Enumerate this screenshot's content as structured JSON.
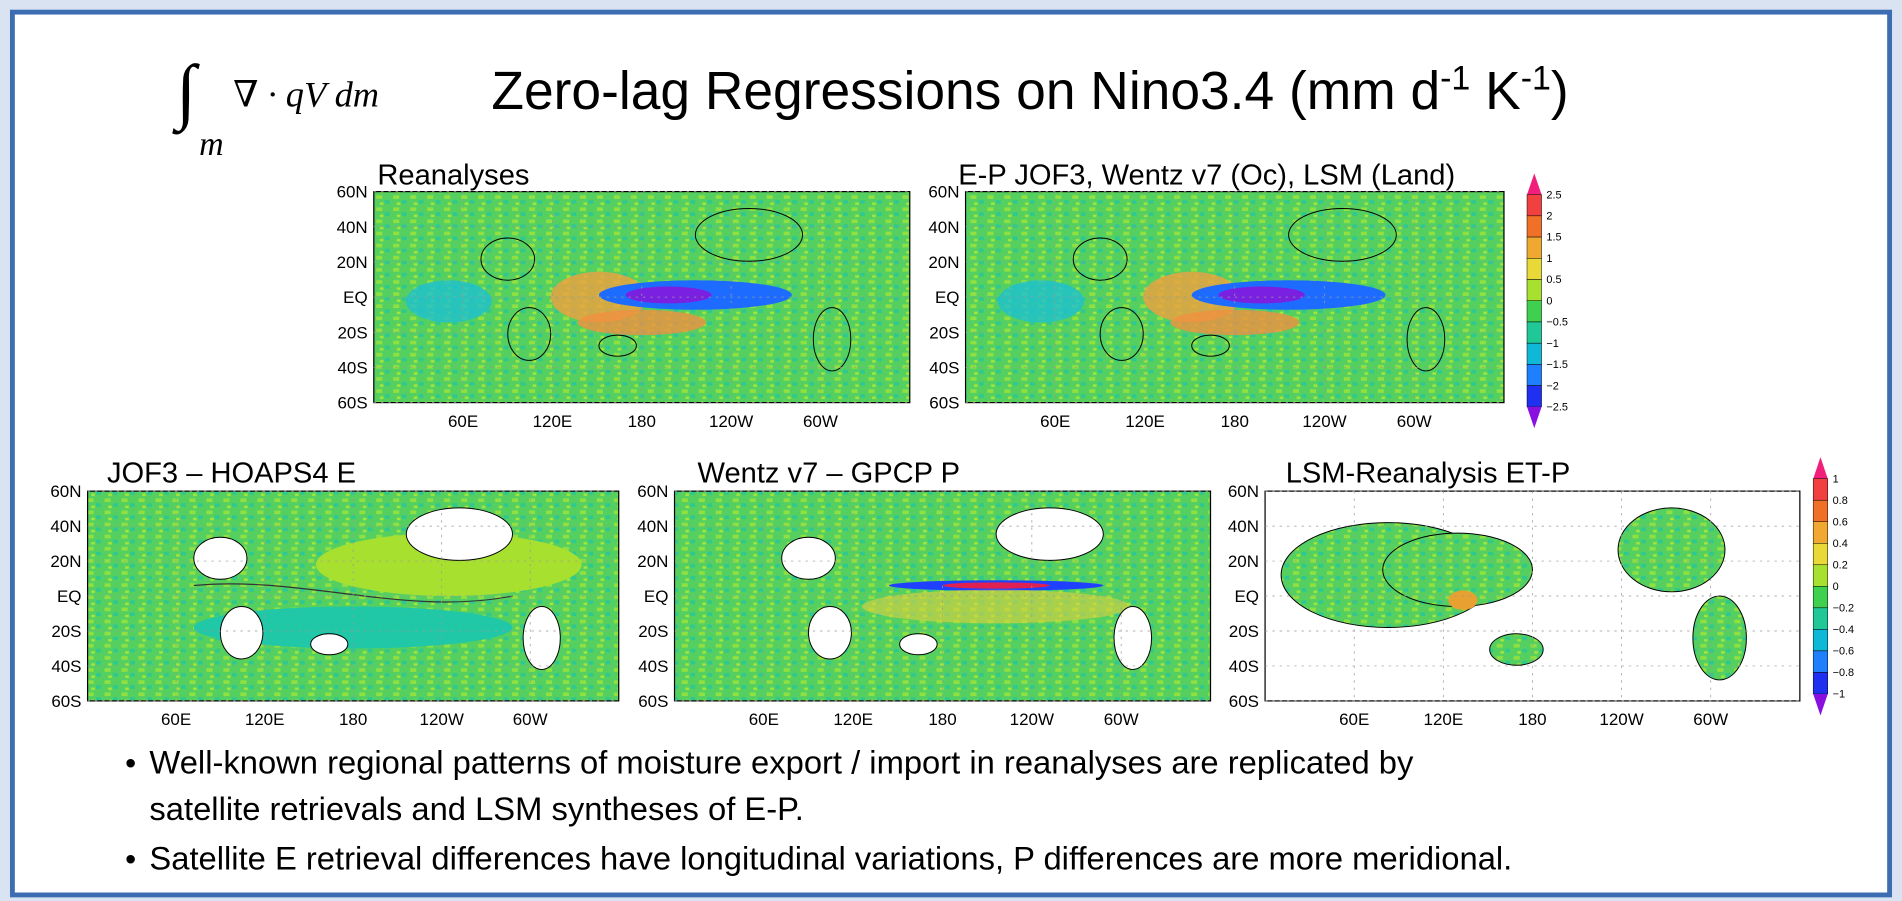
{
  "header": {
    "integral": "∫",
    "formula": "∇ · qV dm",
    "formula_sub": "m",
    "title": [
      "Zero-lag Regressions on Nino3.4  (mm d",
      "-1",
      " K",
      "-1",
      ")"
    ]
  },
  "axes": {
    "lat_labels": [
      "60N",
      "40N",
      "20N",
      "EQ",
      "20S",
      "40S",
      "60S"
    ],
    "lon_labels": [
      "60E",
      "120E",
      "180",
      "120W",
      "60W"
    ]
  },
  "panels": [
    {
      "title": "Reanalyses"
    },
    {
      "title": "E-P   JOF3, Wentz v7 (Oc), LSM (Land)"
    },
    {
      "title": "JOF3 – HOAPS4    E"
    },
    {
      "title": "Wentz v7 – GPCP    P"
    },
    {
      "title": "LSM-Reanalysis     ET-P"
    }
  ],
  "colorbars": [
    {
      "labels": [
        "2.5",
        "2",
        "1.5",
        "1",
        "0.5",
        "0",
        "−0.5",
        "−1",
        "−1.5",
        "−2",
        "−2.5"
      ]
    },
    {
      "labels": [
        "1",
        "0.8",
        "0.6",
        "0.4",
        "0.2",
        "0",
        "−0.2",
        "−0.4",
        "−0.6",
        "−0.8",
        "−1"
      ]
    }
  ],
  "bullets": [
    [
      "Well-known regional patterns of moisture export / import in reanalyses are replicated by",
      "satellite retrievals and LSM syntheses of E-P."
    ],
    [
      "Satellite E retrieval differences have longitudinal variations, P differences are more meridional."
    ]
  ]
}
